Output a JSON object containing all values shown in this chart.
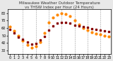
{
  "title": "Milwaukee Weather Outdoor Temperature vs THSW Index per Hour (24 Hours)",
  "background_color": "#e8e8e8",
  "plot_bg_color": "#ffffff",
  "ylim": [
    25,
    85
  ],
  "yticks": [
    30,
    40,
    50,
    60,
    70,
    80
  ],
  "hours": [
    0,
    1,
    2,
    3,
    4,
    5,
    6,
    7,
    8,
    9,
    10,
    11,
    12,
    13,
    14,
    15,
    16,
    17,
    18,
    19,
    20,
    21,
    22,
    23
  ],
  "temp": [
    55,
    52,
    50,
    48,
    46,
    44,
    45,
    47,
    50,
    55,
    60,
    63,
    65,
    66,
    65,
    63,
    62,
    62,
    61,
    60,
    58,
    57,
    56,
    55
  ],
  "thsw": [
    60,
    55,
    50,
    44,
    38,
    35,
    36,
    42,
    52,
    65,
    73,
    77,
    79,
    78,
    75,
    70,
    65,
    60,
    56,
    52,
    50,
    48,
    47,
    46
  ],
  "temp_color": "#880000",
  "thsw_color": "#ff8800",
  "temp_marker": "s",
  "thsw_marker": "o",
  "temp_marker_size": 2.0,
  "thsw_marker_size": 2.0,
  "grid_color": "#999999",
  "vgrid_hours": [
    3,
    6,
    9,
    12,
    15,
    18,
    21
  ],
  "tick_label_size": 3.5,
  "title_fontsize": 4.0
}
